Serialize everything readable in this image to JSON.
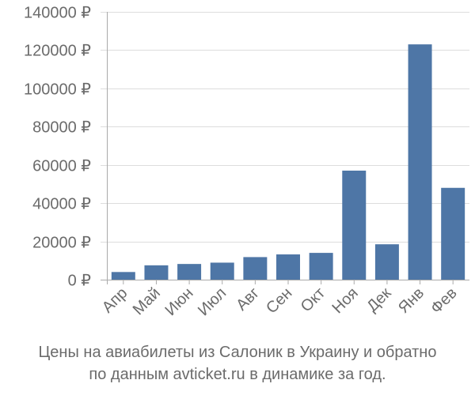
{
  "caption": {
    "line1": "Цены на авиабилеты из Салоник в Украину и обратно",
    "line2": "по данным avticket.ru в динамике за год."
  },
  "colors": {
    "bar": "#4e76a6",
    "grid": "#dddddd",
    "axis": "#aaaaaa",
    "text": "#6b6b6b"
  },
  "chart_data": {
    "type": "bar",
    "title": "",
    "xlabel": "",
    "ylabel": "",
    "ylim": [
      0,
      140000
    ],
    "yticks": [
      0,
      20000,
      40000,
      60000,
      80000,
      100000,
      120000,
      140000
    ],
    "ytick_labels": [
      "0 ₽",
      "20000 ₽",
      "40000 ₽",
      "60000 ₽",
      "80000 ₽",
      "100000 ₽",
      "120000 ₽",
      "140000 ₽"
    ],
    "grid": true,
    "categories": [
      "Апр",
      "Май",
      "Июн",
      "Июл",
      "Авг",
      "Сен",
      "Окт",
      "Ноя",
      "Дек",
      "Янв",
      "Фев"
    ],
    "values": [
      4000,
      7500,
      8200,
      8900,
      11800,
      13200,
      14000,
      57000,
      18500,
      123000,
      48000
    ]
  }
}
